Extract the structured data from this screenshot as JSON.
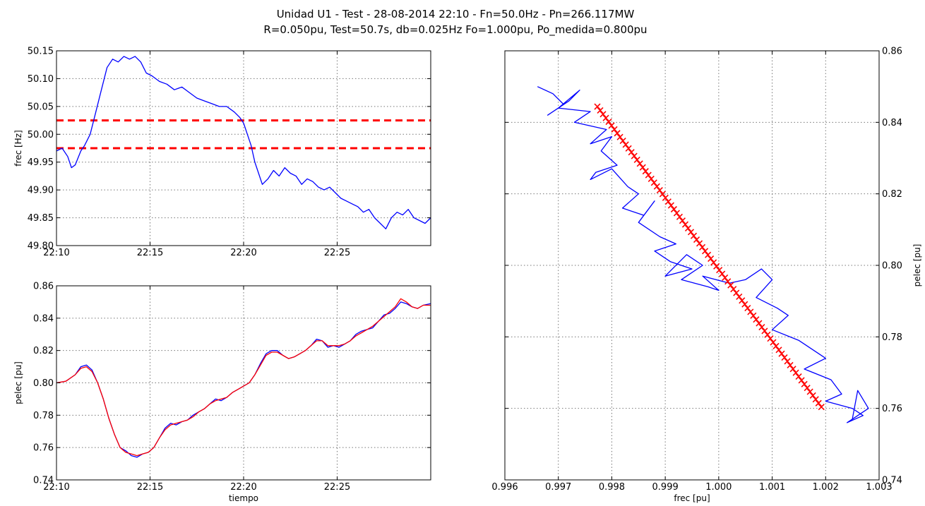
{
  "title_line1": "Unidad U1 - Test - 28-08-2014 22:10 - Fn=50.0Hz - Pn=266.117MW",
  "title_line2": "R=0.050pu, Test=50.7s, db=0.025Hz Fo=1.000pu, Po_medida=0.800pu",
  "colors": {
    "measured": "#0000ff",
    "expected": "#ff0000",
    "deadband": "#ff0000"
  },
  "chart_data": [
    {
      "type": "line",
      "id": "frequency-vs-time",
      "xlabel": "",
      "ylabel": "frec [Hz]",
      "xlim": [
        0,
        20
      ],
      "ylim": [
        49.8,
        50.15
      ],
      "x_ticks": [
        "22:10",
        "22:15",
        "22:20",
        "22:25"
      ],
      "x_tick_minutes": [
        0,
        5,
        10,
        15
      ],
      "y_ticks": [
        "49.80",
        "49.85",
        "49.90",
        "49.95",
        "50.00",
        "50.05",
        "50.10",
        "50.15"
      ],
      "grid": true,
      "deadband": [
        49.975,
        50.025
      ],
      "series": [
        {
          "x_minutes": [
            0,
            0.3,
            0.6,
            0.8,
            1.0,
            1.3,
            1.5,
            1.8,
            2.1,
            2.4,
            2.7,
            3.0,
            3.3,
            3.6,
            3.9,
            4.2,
            4.5,
            4.8,
            5.1,
            5.5,
            5.9,
            6.3,
            6.7,
            7.1,
            7.5,
            7.9,
            8.3,
            8.7,
            9.1,
            9.5,
            9.8,
            10.0,
            10.2,
            10.4,
            10.6,
            10.8,
            11.0,
            11.3,
            11.6,
            11.9,
            12.2,
            12.5,
            12.8,
            13.1,
            13.4,
            13.7,
            14.0,
            14.3,
            14.6,
            14.9,
            15.2,
            15.5,
            15.8,
            16.1,
            16.4,
            16.7,
            17.0,
            17.3,
            17.6,
            17.9,
            18.2,
            18.5,
            18.8,
            19.1,
            19.4,
            19.7,
            20.0
          ],
          "values": [
            49.97,
            49.975,
            49.96,
            49.94,
            49.945,
            49.97,
            49.98,
            50.0,
            50.04,
            50.08,
            50.12,
            50.135,
            50.13,
            50.14,
            50.135,
            50.14,
            50.13,
            50.11,
            50.105,
            50.095,
            50.09,
            50.08,
            50.085,
            50.075,
            50.065,
            50.06,
            50.055,
            50.05,
            50.05,
            50.04,
            50.03,
            50.02,
            50.0,
            49.98,
            49.95,
            49.93,
            49.91,
            49.92,
            49.935,
            49.925,
            49.94,
            49.93,
            49.925,
            49.91,
            49.92,
            49.915,
            49.905,
            49.9,
            49.905,
            49.895,
            49.885,
            49.88,
            49.875,
            49.87,
            49.86,
            49.865,
            49.85,
            49.84,
            49.83,
            49.85,
            49.86,
            49.855,
            49.865,
            49.85,
            49.845,
            49.84,
            49.85
          ]
        }
      ]
    },
    {
      "type": "line",
      "id": "power-vs-time",
      "xlabel": "tiempo",
      "ylabel": "pelec [pu]",
      "xlim": [
        0,
        20
      ],
      "ylim": [
        0.74,
        0.86
      ],
      "x_ticks": [
        "22:10",
        "22:15",
        "22:20",
        "22:25"
      ],
      "x_tick_minutes": [
        0,
        5,
        10,
        15
      ],
      "y_ticks": [
        "0.74",
        "0.76",
        "0.78",
        "0.80",
        "0.82",
        "0.84",
        "0.86"
      ],
      "grid": true,
      "series": [
        {
          "role": "measured",
          "x_minutes": [
            0,
            0.5,
            1.0,
            1.3,
            1.6,
            1.9,
            2.2,
            2.5,
            2.8,
            3.1,
            3.4,
            3.7,
            4.0,
            4.3,
            4.6,
            4.9,
            5.2,
            5.5,
            5.8,
            6.1,
            6.4,
            6.7,
            7.0,
            7.3,
            7.6,
            7.9,
            8.2,
            8.5,
            8.8,
            9.1,
            9.4,
            9.7,
            10.0,
            10.3,
            10.6,
            10.9,
            11.2,
            11.5,
            11.8,
            12.1,
            12.4,
            12.7,
            13.0,
            13.3,
            13.6,
            13.9,
            14.2,
            14.5,
            14.8,
            15.1,
            15.4,
            15.7,
            16.0,
            16.3,
            16.6,
            16.9,
            17.2,
            17.5,
            17.8,
            18.1,
            18.4,
            18.7,
            19.0,
            19.3,
            19.6,
            20.0
          ],
          "values": [
            0.8,
            0.801,
            0.805,
            0.81,
            0.811,
            0.808,
            0.8,
            0.79,
            0.778,
            0.768,
            0.76,
            0.758,
            0.755,
            0.754,
            0.756,
            0.757,
            0.76,
            0.766,
            0.772,
            0.775,
            0.774,
            0.776,
            0.777,
            0.78,
            0.782,
            0.784,
            0.787,
            0.79,
            0.789,
            0.791,
            0.794,
            0.796,
            0.798,
            0.8,
            0.805,
            0.812,
            0.818,
            0.82,
            0.82,
            0.817,
            0.815,
            0.816,
            0.818,
            0.82,
            0.823,
            0.827,
            0.826,
            0.822,
            0.823,
            0.822,
            0.824,
            0.826,
            0.83,
            0.832,
            0.833,
            0.834,
            0.838,
            0.842,
            0.843,
            0.846,
            0.85,
            0.849,
            0.847,
            0.846,
            0.848,
            0.849
          ]
        },
        {
          "role": "expected",
          "x_minutes": [
            0,
            0.5,
            1.0,
            1.3,
            1.6,
            1.9,
            2.2,
            2.5,
            2.8,
            3.1,
            3.4,
            3.7,
            4.0,
            4.3,
            4.6,
            4.9,
            5.2,
            5.5,
            5.8,
            6.1,
            6.4,
            6.7,
            7.0,
            7.3,
            7.6,
            7.9,
            8.2,
            8.5,
            8.8,
            9.1,
            9.4,
            9.7,
            10.0,
            10.3,
            10.6,
            10.9,
            11.2,
            11.5,
            11.8,
            12.1,
            12.4,
            12.7,
            13.0,
            13.3,
            13.6,
            13.9,
            14.2,
            14.5,
            14.8,
            15.1,
            15.4,
            15.7,
            16.0,
            16.3,
            16.6,
            16.9,
            17.2,
            17.5,
            17.8,
            18.1,
            18.4,
            18.7,
            19.0,
            19.3,
            19.6,
            20.0
          ],
          "values": [
            0.8,
            0.801,
            0.805,
            0.809,
            0.81,
            0.807,
            0.8,
            0.79,
            0.778,
            0.768,
            0.76,
            0.757,
            0.756,
            0.755,
            0.756,
            0.757,
            0.76,
            0.766,
            0.771,
            0.774,
            0.775,
            0.776,
            0.777,
            0.779,
            0.782,
            0.784,
            0.787,
            0.789,
            0.79,
            0.791,
            0.794,
            0.796,
            0.798,
            0.8,
            0.805,
            0.811,
            0.817,
            0.819,
            0.819,
            0.817,
            0.815,
            0.816,
            0.818,
            0.82,
            0.823,
            0.826,
            0.826,
            0.823,
            0.823,
            0.823,
            0.824,
            0.826,
            0.829,
            0.831,
            0.833,
            0.835,
            0.838,
            0.841,
            0.844,
            0.847,
            0.852,
            0.85,
            0.847,
            0.846,
            0.848,
            0.848
          ]
        }
      ]
    },
    {
      "type": "scatter",
      "id": "power-vs-frequency",
      "xlabel": "frec [pu]",
      "ylabel": "pelec [pu]",
      "xlim": [
        0.996,
        1.003
      ],
      "ylim": [
        0.74,
        0.86
      ],
      "x_ticks": [
        "0.996",
        "0.997",
        "0.998",
        "0.999",
        "1.000",
        "1.001",
        "1.002",
        "1.003"
      ],
      "y_ticks": [
        "0.74",
        "0.76",
        "0.78",
        "0.80",
        "0.82",
        "0.84",
        "0.86"
      ],
      "y_axis_side": "right",
      "grid": true,
      "series": [
        {
          "role": "measured",
          "style": "line",
          "x": [
            0.99661,
            0.9969,
            0.9971,
            0.9968,
            0.9972,
            0.9974,
            0.997,
            0.9976,
            0.9973,
            0.9979,
            0.9976,
            0.998,
            0.9978,
            0.9981,
            0.9977,
            0.9976,
            0.998,
            0.9983,
            0.9985,
            0.9982,
            0.9986,
            0.9988,
            0.9985,
            0.9989,
            0.9992,
            0.9988,
            0.9991,
            0.9995,
            0.999,
            0.9994,
            0.9997,
            0.9993,
            0.9998,
            1.0,
            0.9997,
            1.0002,
            1.0005,
            1.0008,
            1.001,
            1.0007,
            1.0011,
            1.0013,
            1.001,
            1.0015,
            1.0018,
            1.002,
            1.0016,
            1.0021,
            1.0023,
            1.002,
            1.0025,
            1.0027,
            1.0024,
            1.0028,
            1.0026,
            1.0025
          ],
          "y": [
            0.85,
            0.848,
            0.845,
            0.842,
            0.846,
            0.849,
            0.844,
            0.843,
            0.84,
            0.838,
            0.834,
            0.836,
            0.832,
            0.828,
            0.826,
            0.824,
            0.827,
            0.822,
            0.82,
            0.816,
            0.814,
            0.818,
            0.812,
            0.808,
            0.806,
            0.804,
            0.801,
            0.799,
            0.797,
            0.803,
            0.8,
            0.796,
            0.794,
            0.793,
            0.797,
            0.795,
            0.796,
            0.799,
            0.796,
            0.791,
            0.788,
            0.786,
            0.782,
            0.779,
            0.776,
            0.774,
            0.771,
            0.768,
            0.764,
            0.762,
            0.76,
            0.758,
            0.756,
            0.76,
            0.765,
            0.757
          ]
        },
        {
          "role": "expected",
          "style": "markers",
          "x_range": [
            0.99773,
            1.00192
          ],
          "y_range": [
            0.8444,
            0.7604
          ],
          "count": 80
        }
      ]
    }
  ]
}
